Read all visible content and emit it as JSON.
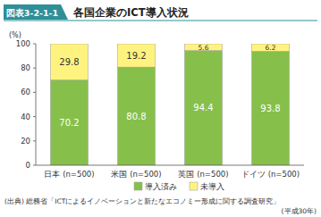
{
  "chart_data": {
    "type": "bar",
    "label": "図表3-2-1-1",
    "title": "各国企業のICT導入状況",
    "y_label": "(%)",
    "categories": [
      "日本 (n=500)",
      "米国 (n=500)",
      "英国 (n=500)",
      "ドイツ (n=500)"
    ],
    "series": [
      {
        "name": "導入済み",
        "color": "#86c04a",
        "values": [
          70.2,
          80.8,
          94.4,
          93.8
        ]
      },
      {
        "name": "未導入",
        "color": "#fff380",
        "values": [
          29.8,
          19.2,
          5.6,
          6.2
        ]
      }
    ],
    "stacked": true,
    "data_labels": true,
    "grid": false,
    "legend": "bottom",
    "ylim": [
      0,
      100
    ],
    "yticks": [
      0,
      20,
      40,
      60,
      80,
      100
    ],
    "source": [
      "(出典) 総務省「ICTによるイノベーションと新たなエコノミー形成に関する調査研究」",
      "(平成30年)"
    ]
  }
}
